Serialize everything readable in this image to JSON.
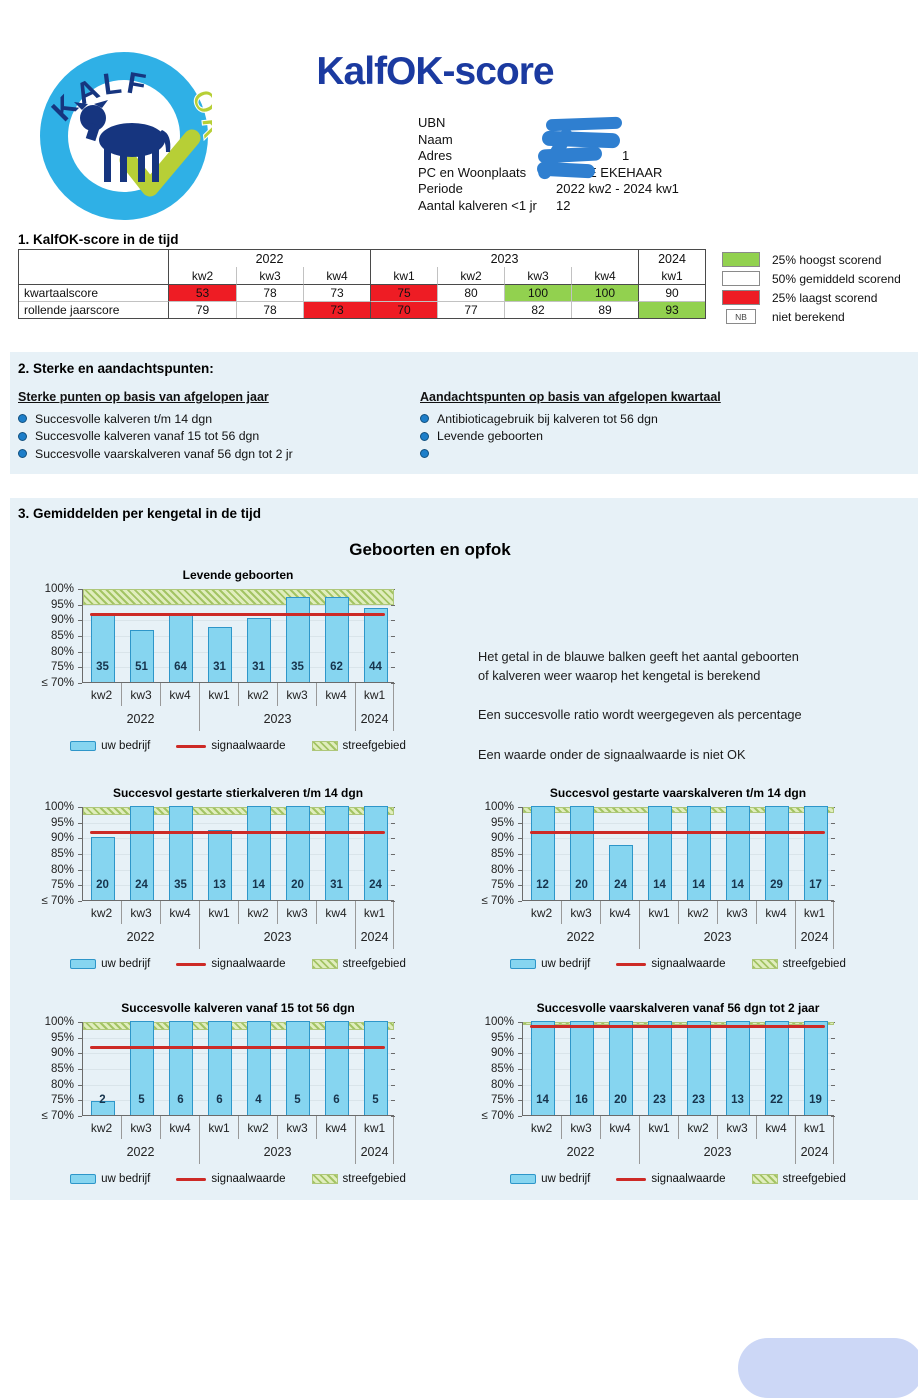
{
  "header": {
    "title": "KalfOK-score",
    "logo": {
      "ring_text_top": "KALF",
      "ring_text_side": "OK"
    },
    "info_rows": [
      {
        "label": "UBN",
        "value": "",
        "redacted": true
      },
      {
        "label": "Naam",
        "value": "",
        "redacted": true
      },
      {
        "label": "Adres",
        "value": "1",
        "redacted": true
      },
      {
        "label": "PC en Woonplaats",
        "value": "E EKEHAAR",
        "redacted": true
      },
      {
        "label": "Periode",
        "value": "2022 kw2 - 2024 kw1",
        "redacted": false
      },
      {
        "label": "Aantal kalveren <1 jr",
        "value": "12",
        "redacted": false
      }
    ]
  },
  "section1": {
    "heading": "1. KalfOK-score in de tijd",
    "table": {
      "year_groups": [
        {
          "label": "2022",
          "span": 3
        },
        {
          "label": "2023",
          "span": 4
        },
        {
          "label": "2024",
          "span": 1
        }
      ],
      "quarters": [
        "kw2",
        "kw3",
        "kw4",
        "kw1",
        "kw2",
        "kw3",
        "kw4",
        "kw1"
      ],
      "rows": [
        {
          "label": "kwartaalscore",
          "cells": [
            {
              "v": "53",
              "c": "red"
            },
            {
              "v": "78",
              "c": "white"
            },
            {
              "v": "73",
              "c": "white"
            },
            {
              "v": "75",
              "c": "red"
            },
            {
              "v": "80",
              "c": "white"
            },
            {
              "v": "100",
              "c": "green"
            },
            {
              "v": "100",
              "c": "green"
            },
            {
              "v": "90",
              "c": "white"
            }
          ]
        },
        {
          "label": "rollende jaarscore",
          "cells": [
            {
              "v": "79",
              "c": "white"
            },
            {
              "v": "78",
              "c": "white"
            },
            {
              "v": "73",
              "c": "red"
            },
            {
              "v": "70",
              "c": "red"
            },
            {
              "v": "77",
              "c": "white"
            },
            {
              "v": "82",
              "c": "white"
            },
            {
              "v": "89",
              "c": "white"
            },
            {
              "v": "93",
              "c": "green"
            }
          ]
        }
      ]
    },
    "legend": [
      {
        "swatch": "green",
        "swatch_text": "",
        "label": "25% hoogst scorend"
      },
      {
        "swatch": "white",
        "swatch_text": "",
        "label": "50% gemiddeld scorend"
      },
      {
        "swatch": "red",
        "swatch_text": "",
        "label": "25% laagst scorend"
      },
      {
        "swatch": "nb",
        "swatch_text": "NB",
        "label": "niet berekend"
      }
    ]
  },
  "section2": {
    "heading": "2. Sterke en aandachtspunten:",
    "columns": [
      {
        "title": "Sterke punten op basis van afgelopen jaar",
        "items": [
          "Succesvolle kalveren t/m 14 dgn",
          "Succesvolle kalveren vanaf 15 tot 56 dgn",
          "Succesvolle vaarskalveren vanaf 56 dgn tot 2 jr"
        ]
      },
      {
        "title": "Aandachtspunten op basis van afgelopen kwartaal",
        "items": [
          "Antibioticagebruik bij kalveren tot 56 dgn",
          "Levende geboorten",
          ""
        ]
      }
    ]
  },
  "section3": {
    "heading": "3. Gemiddelden per kengetal in de tijd",
    "panel_title": "Geboorten en opfok",
    "notes": [
      "Het getal in de blauwe balken geeft het aantal geboorten\nof kalveren weer waarop het kengetal is berekend",
      "Een succesvolle ratio wordt weergegeven als percentage",
      "Een waarde onder de signaalwaarde is niet OK"
    ]
  },
  "chart_legend": [
    "uw bedrijf",
    "signaalwaarde",
    "streefgebied"
  ],
  "chart_data": [
    {
      "type": "bar",
      "title": "Levende geboorten",
      "categories": [
        "kw2",
        "kw3",
        "kw4",
        "kw1",
        "kw2",
        "kw3",
        "kw4",
        "kw1"
      ],
      "year_groups": [
        {
          "label": "2022",
          "span": 3
        },
        {
          "label": "2023",
          "span": 4
        },
        {
          "label": "2024",
          "span": 1
        }
      ],
      "values_percent": [
        91.5,
        86.5,
        92,
        87.5,
        90.5,
        97,
        97,
        93.5
      ],
      "bar_counts": [
        35,
        51,
        64,
        31,
        31,
        35,
        62,
        44
      ],
      "signal_value": 92,
      "target_band": [
        95,
        100
      ],
      "ylim": [
        70,
        100
      ],
      "yticks": [
        "100%",
        "95%",
        "90%",
        "85%",
        "80%",
        "75%",
        "≤ 70%"
      ]
    },
    {
      "type": "bar",
      "title": "Succesvol gestarte stierkalveren t/m 14 dgn",
      "categories": [
        "kw2",
        "kw3",
        "kw4",
        "kw1",
        "kw2",
        "kw3",
        "kw4",
        "kw1"
      ],
      "year_groups": [
        {
          "label": "2022",
          "span": 3
        },
        {
          "label": "2023",
          "span": 4
        },
        {
          "label": "2024",
          "span": 1
        }
      ],
      "values_percent": [
        90,
        100,
        100,
        92.5,
        100,
        100,
        100,
        100
      ],
      "bar_counts": [
        20,
        24,
        35,
        13,
        14,
        20,
        31,
        24
      ],
      "signal_value": 92,
      "target_band": [
        97.5,
        100
      ],
      "ylim": [
        70,
        100
      ],
      "yticks": [
        "100%",
        "95%",
        "90%",
        "85%",
        "80%",
        "75%",
        "≤ 70%"
      ]
    },
    {
      "type": "bar",
      "title": "Succesvol gestarte vaarskalveren t/m 14 dgn",
      "categories": [
        "kw2",
        "kw3",
        "kw4",
        "kw1",
        "kw2",
        "kw3",
        "kw4",
        "kw1"
      ],
      "year_groups": [
        {
          "label": "2022",
          "span": 3
        },
        {
          "label": "2023",
          "span": 4
        },
        {
          "label": "2024",
          "span": 1
        }
      ],
      "values_percent": [
        100,
        100,
        87.5,
        100,
        100,
        100,
        100,
        100
      ],
      "bar_counts": [
        12,
        20,
        24,
        14,
        14,
        14,
        29,
        17
      ],
      "signal_value": 92,
      "target_band": [
        98,
        100
      ],
      "ylim": [
        70,
        100
      ],
      "yticks": [
        "100%",
        "95%",
        "90%",
        "85%",
        "80%",
        "75%",
        "≤ 70%"
      ]
    },
    {
      "type": "bar",
      "title": "Succesvolle kalveren vanaf 15 tot 56 dgn",
      "categories": [
        "kw2",
        "kw3",
        "kw4",
        "kw1",
        "kw2",
        "kw3",
        "kw4",
        "kw1"
      ],
      "year_groups": [
        {
          "label": "2022",
          "span": 3
        },
        {
          "label": "2023",
          "span": 4
        },
        {
          "label": "2024",
          "span": 1
        }
      ],
      "values_percent": [
        74.5,
        100,
        100,
        100,
        100,
        100,
        100,
        100
      ],
      "bar_counts": [
        2,
        5,
        6,
        6,
        4,
        5,
        6,
        5
      ],
      "signal_value": 92,
      "target_band": [
        97.5,
        100
      ],
      "ylim": [
        70,
        100
      ],
      "yticks": [
        "100%",
        "95%",
        "90%",
        "85%",
        "80%",
        "75%",
        "≤ 70%"
      ]
    },
    {
      "type": "bar",
      "title": "Succesvolle vaarskalveren vanaf 56 dgn tot 2 jaar",
      "categories": [
        "kw2",
        "kw3",
        "kw4",
        "kw1",
        "kw2",
        "kw3",
        "kw4",
        "kw1"
      ],
      "year_groups": [
        {
          "label": "2022",
          "span": 3
        },
        {
          "label": "2023",
          "span": 4
        },
        {
          "label": "2024",
          "span": 1
        }
      ],
      "values_percent": [
        100,
        100,
        100,
        100,
        100,
        100,
        100,
        100
      ],
      "bar_counts": [
        14,
        16,
        20,
        23,
        23,
        13,
        22,
        19
      ],
      "signal_value": 98.5,
      "target_band": [
        99,
        100
      ],
      "ylim": [
        70,
        100
      ],
      "yticks": [
        "100%",
        "95%",
        "90%",
        "85%",
        "80%",
        "75%",
        "≤ 70%"
      ]
    }
  ],
  "colors": {
    "title_navy": "#1b3aa0",
    "score_green": "#92d14f",
    "score_red": "#ee1c24",
    "bar_blue": "#86d5f0",
    "bar_border": "#2e96c9",
    "signal_red": "#cd2a26",
    "band_green": "#e0edbd",
    "panel_blue": "#e7f1f7",
    "scribble_blue": "#2f7fd0",
    "blob_lavender": "#ccd7f6"
  }
}
